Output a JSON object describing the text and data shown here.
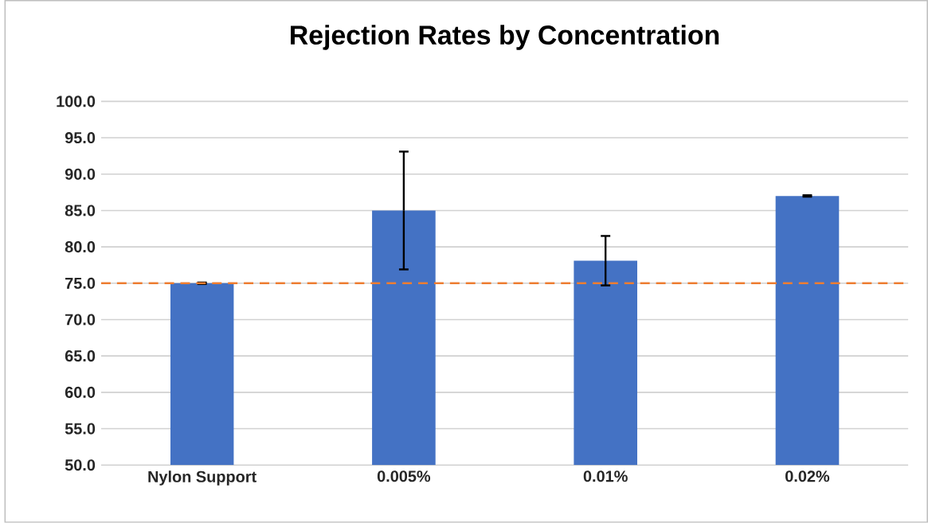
{
  "chart_data": {
    "type": "bar",
    "title": "Rejection Rates by Concentration",
    "categories": [
      "Nylon Support",
      "0.005%",
      "0.01%",
      "0.02%"
    ],
    "values": [
      75.0,
      85.0,
      78.1,
      87.0
    ],
    "errors": [
      0.1,
      8.1,
      3.4,
      0.1
    ],
    "color": "#4472c4",
    "ylim": [
      50,
      100
    ],
    "yticks": [
      {
        "value": 50,
        "label": "50.0"
      },
      {
        "value": 55,
        "label": "55.0"
      },
      {
        "value": 60,
        "label": "60.0"
      },
      {
        "value": 65,
        "label": "65.0"
      },
      {
        "value": 70,
        "label": "70.0"
      },
      {
        "value": 75,
        "label": "75.0"
      },
      {
        "value": 80,
        "label": "80.0"
      },
      {
        "value": 85,
        "label": "85.0"
      },
      {
        "value": 90,
        "label": "90.0"
      },
      {
        "value": 95,
        "label": "95.0"
      },
      {
        "value": 100,
        "label": "100.0"
      }
    ],
    "grid": "y",
    "ref_lines": [
      {
        "axis": "y",
        "value": 75,
        "color": "#ed7d31",
        "line_style": "dashed"
      }
    ]
  }
}
